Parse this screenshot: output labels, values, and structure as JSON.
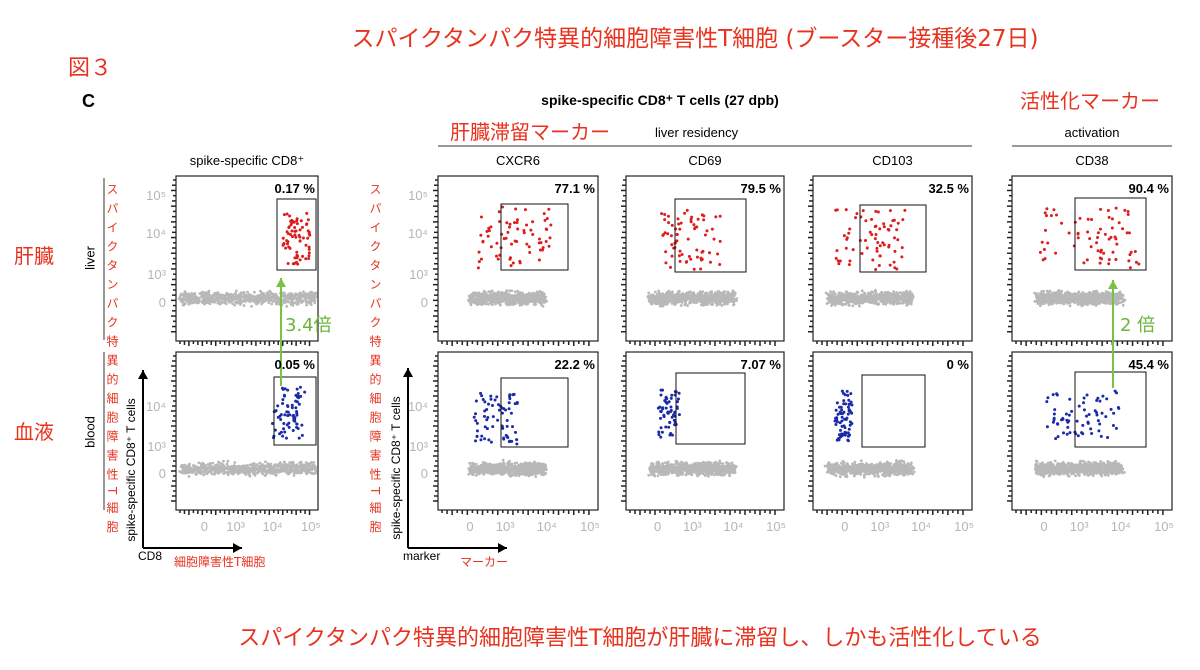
{
  "title": "スパイクタンパク特異的細胞障害性T細胞 (ブースター接種後27日)",
  "figure_label": "図３",
  "panel_letter": "C",
  "header": "spike-specific CD8⁺ T cells  (27 dpb)",
  "liver_residency_jp": "肝臓滞留マーカー",
  "liver_residency": "liver residency",
  "activation_jp": "活性化マーカー",
  "activation": "activation",
  "columns": [
    "spike-specific CD8⁺",
    "CXCR6",
    "CD69",
    "CD103",
    "CD38"
  ],
  "rows": [
    {
      "label": "liver",
      "label_jp": "肝臓"
    },
    {
      "label": "blood",
      "label_jp": "血液"
    }
  ],
  "percentages": [
    [
      "0.17 %",
      "77.1 %",
      "79.5 %",
      "32.5 %",
      "90.4 %"
    ],
    [
      "0.05 %",
      "22.2 %",
      "7.07 %",
      "0 %",
      "45.4 %"
    ]
  ],
  "y_ticks": [
    "10⁵",
    "10⁴",
    "10³",
    "0"
  ],
  "x_ticks": [
    "0",
    "10³",
    "10⁴",
    "10⁵"
  ],
  "y_axis_label": "spike-specific CD8⁺ T cells",
  "y_axis_label_jp": "スパイクタンパク特異的細胞障害性T細胞",
  "x_axis_label_left": "CD8",
  "x_axis_label_left_jp": "細胞障害性T細胞",
  "x_axis_label_mid": "marker",
  "x_axis_label_mid_jp": "マーカー",
  "fold_left": "3.4倍",
  "fold_right": "2 倍",
  "footer": "スパイクタンパク特異的細胞障害性T細胞が肝臓に滞留し、しかも活性化している"
}
